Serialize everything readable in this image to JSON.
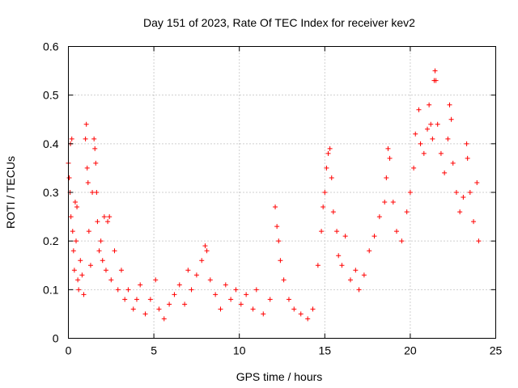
{
  "chart_data": {
    "type": "scatter",
    "title": "Day 151 of 2023, Rate Of TEC Index for receiver kev2",
    "xlabel": "GPS time / hours",
    "ylabel": "ROTI / TECUs",
    "xlim": [
      0,
      25
    ],
    "ylim": [
      0,
      0.6
    ],
    "x_ticks": [
      "0",
      "5",
      "10",
      "15",
      "20",
      "25"
    ],
    "y_ticks": [
      "0",
      "0.1",
      "0.2",
      "0.3",
      "0.4",
      "0.5",
      "0.6"
    ],
    "grid": true,
    "legend": "none",
    "marker": "+",
    "series": [
      {
        "color": "#ff0000",
        "points": [
          [
            0.0,
            0.36
          ],
          [
            0.05,
            0.33
          ],
          [
            0.1,
            0.3
          ],
          [
            0.12,
            0.4
          ],
          [
            0.15,
            0.25
          ],
          [
            0.2,
            0.41
          ],
          [
            0.25,
            0.22
          ],
          [
            0.3,
            0.18
          ],
          [
            0.35,
            0.14
          ],
          [
            0.4,
            0.28
          ],
          [
            0.45,
            0.2
          ],
          [
            0.5,
            0.27
          ],
          [
            0.55,
            0.12
          ],
          [
            0.6,
            0.1
          ],
          [
            0.7,
            0.16
          ],
          [
            0.8,
            0.13
          ],
          [
            0.9,
            0.09
          ],
          [
            1.0,
            0.41
          ],
          [
            1.05,
            0.44
          ],
          [
            1.1,
            0.35
          ],
          [
            1.15,
            0.32
          ],
          [
            1.2,
            0.22
          ],
          [
            1.3,
            0.15
          ],
          [
            1.4,
            0.3
          ],
          [
            1.5,
            0.41
          ],
          [
            1.55,
            0.39
          ],
          [
            1.6,
            0.36
          ],
          [
            1.65,
            0.3
          ],
          [
            1.7,
            0.24
          ],
          [
            1.8,
            0.18
          ],
          [
            1.9,
            0.2
          ],
          [
            2.0,
            0.16
          ],
          [
            2.1,
            0.25
          ],
          [
            2.2,
            0.14
          ],
          [
            2.3,
            0.24
          ],
          [
            2.4,
            0.25
          ],
          [
            2.5,
            0.12
          ],
          [
            2.7,
            0.18
          ],
          [
            2.9,
            0.1
          ],
          [
            3.1,
            0.14
          ],
          [
            3.3,
            0.08
          ],
          [
            3.5,
            0.1
          ],
          [
            3.8,
            0.06
          ],
          [
            4.0,
            0.08
          ],
          [
            4.2,
            0.11
          ],
          [
            4.5,
            0.05
          ],
          [
            4.8,
            0.08
          ],
          [
            5.1,
            0.12
          ],
          [
            5.3,
            0.06
          ],
          [
            5.6,
            0.04
          ],
          [
            5.9,
            0.07
          ],
          [
            6.2,
            0.09
          ],
          [
            6.5,
            0.11
          ],
          [
            6.8,
            0.07
          ],
          [
            7.0,
            0.14
          ],
          [
            7.2,
            0.1
          ],
          [
            7.5,
            0.13
          ],
          [
            7.8,
            0.16
          ],
          [
            8.0,
            0.19
          ],
          [
            8.1,
            0.18
          ],
          [
            8.3,
            0.12
          ],
          [
            8.6,
            0.09
          ],
          [
            8.9,
            0.06
          ],
          [
            9.2,
            0.11
          ],
          [
            9.5,
            0.08
          ],
          [
            9.8,
            0.1
          ],
          [
            10.1,
            0.07
          ],
          [
            10.4,
            0.09
          ],
          [
            10.8,
            0.06
          ],
          [
            11.0,
            0.1
          ],
          [
            11.4,
            0.05
          ],
          [
            11.8,
            0.08
          ],
          [
            12.1,
            0.27
          ],
          [
            12.2,
            0.23
          ],
          [
            12.3,
            0.2
          ],
          [
            12.4,
            0.16
          ],
          [
            12.6,
            0.12
          ],
          [
            12.9,
            0.08
          ],
          [
            13.2,
            0.06
          ],
          [
            13.6,
            0.05
          ],
          [
            14.0,
            0.04
          ],
          [
            14.3,
            0.06
          ],
          [
            14.6,
            0.15
          ],
          [
            14.8,
            0.22
          ],
          [
            14.9,
            0.27
          ],
          [
            15.0,
            0.3
          ],
          [
            15.1,
            0.35
          ],
          [
            15.2,
            0.38
          ],
          [
            15.3,
            0.39
          ],
          [
            15.4,
            0.33
          ],
          [
            15.5,
            0.26
          ],
          [
            15.7,
            0.22
          ],
          [
            15.8,
            0.17
          ],
          [
            16.0,
            0.15
          ],
          [
            16.2,
            0.21
          ],
          [
            16.5,
            0.12
          ],
          [
            16.8,
            0.14
          ],
          [
            17.0,
            0.1
          ],
          [
            17.3,
            0.13
          ],
          [
            17.6,
            0.18
          ],
          [
            17.9,
            0.21
          ],
          [
            18.2,
            0.25
          ],
          [
            18.5,
            0.28
          ],
          [
            18.6,
            0.33
          ],
          [
            18.7,
            0.39
          ],
          [
            18.8,
            0.37
          ],
          [
            19.0,
            0.28
          ],
          [
            19.2,
            0.22
          ],
          [
            19.5,
            0.2
          ],
          [
            19.8,
            0.26
          ],
          [
            20.0,
            0.3
          ],
          [
            20.2,
            0.35
          ],
          [
            20.3,
            0.42
          ],
          [
            20.5,
            0.47
          ],
          [
            20.6,
            0.4
          ],
          [
            20.8,
            0.38
          ],
          [
            21.0,
            0.43
          ],
          [
            21.1,
            0.48
          ],
          [
            21.2,
            0.44
          ],
          [
            21.3,
            0.41
          ],
          [
            21.4,
            0.53
          ],
          [
            21.45,
            0.55
          ],
          [
            21.5,
            0.53
          ],
          [
            21.6,
            0.44
          ],
          [
            21.8,
            0.38
          ],
          [
            22.0,
            0.34
          ],
          [
            22.2,
            0.41
          ],
          [
            22.3,
            0.48
          ],
          [
            22.4,
            0.45
          ],
          [
            22.5,
            0.36
          ],
          [
            22.7,
            0.3
          ],
          [
            22.9,
            0.26
          ],
          [
            23.1,
            0.29
          ],
          [
            23.3,
            0.4
          ],
          [
            23.35,
            0.37
          ],
          [
            23.5,
            0.3
          ],
          [
            23.7,
            0.24
          ],
          [
            23.9,
            0.32
          ],
          [
            24.0,
            0.2
          ]
        ]
      }
    ]
  }
}
